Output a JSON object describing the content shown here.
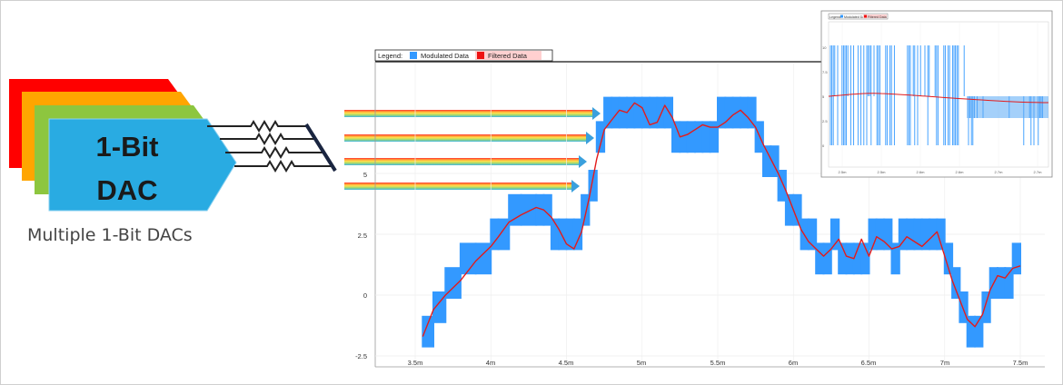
{
  "dac": {
    "title_line1": "1-Bit",
    "title_line2": "DAC",
    "caption": "Multiple 1-Bit DACs",
    "card_colors": [
      "#ff0000",
      "#ffa500",
      "#8dc63f",
      "#29abe2"
    ]
  },
  "chart_data": {
    "type": "line",
    "legend_label": "Legend:",
    "series": [
      {
        "name": "Modulated Data",
        "color": "#3399ff"
      },
      {
        "name": "Filtered Data",
        "color": "#ee1111"
      }
    ],
    "x_ticks": [
      "3.5m",
      "4m",
      "4.5m",
      "5m",
      "5.5m",
      "6m",
      "6.5m",
      "7m",
      "7.5m"
    ],
    "y_ticks": [
      "-2.5",
      "0",
      "2.5",
      "5"
    ],
    "xlim": [
      3.32,
      7.68
    ],
    "ylim": [
      -2.5,
      8.25
    ],
    "filtered_x": [
      3.55,
      3.62,
      3.7,
      3.8,
      3.9,
      4.0,
      4.05,
      4.12,
      4.2,
      4.3,
      4.35,
      4.4,
      4.45,
      4.5,
      4.55,
      4.6,
      4.65,
      4.7,
      4.75,
      4.8,
      4.85,
      4.9,
      4.95,
      5.0,
      5.05,
      5.1,
      5.15,
      5.2,
      5.25,
      5.3,
      5.35,
      5.4,
      5.45,
      5.5,
      5.55,
      5.6,
      5.65,
      5.7,
      5.75,
      5.8,
      5.85,
      5.9,
      5.95,
      6.0,
      6.05,
      6.1,
      6.15,
      6.2,
      6.25,
      6.3,
      6.35,
      6.4,
      6.45,
      6.5,
      6.55,
      6.6,
      6.65,
      6.7,
      6.75,
      6.8,
      6.85,
      6.9,
      6.95,
      7.0,
      7.05,
      7.1,
      7.15,
      7.2,
      7.25,
      7.3,
      7.35,
      7.4,
      7.45,
      7.5
    ],
    "filtered_y": [
      -1.7,
      -0.6,
      0.0,
      0.6,
      1.4,
      2.0,
      2.4,
      3.0,
      3.3,
      3.6,
      3.5,
      3.2,
      2.7,
      2.1,
      1.9,
      2.6,
      4.0,
      5.6,
      6.8,
      7.2,
      7.6,
      7.5,
      7.9,
      7.7,
      7.0,
      7.1,
      7.8,
      7.3,
      6.5,
      6.6,
      6.8,
      7.0,
      6.9,
      6.9,
      7.1,
      7.4,
      7.6,
      7.3,
      6.9,
      6.2,
      5.6,
      5.0,
      4.3,
      3.5,
      2.7,
      2.2,
      1.9,
      1.6,
      1.9,
      2.3,
      1.6,
      1.5,
      2.3,
      1.6,
      2.4,
      2.2,
      1.9,
      2.0,
      2.4,
      2.2,
      2.0,
      2.3,
      2.6,
      1.6,
      0.6,
      -0.2,
      -1.0,
      -1.3,
      -0.8,
      0.2,
      0.8,
      0.7,
      1.1,
      1.2
    ]
  },
  "inset": {
    "legend_label": "Legend:",
    "series": [
      "Modulated Data",
      "Filtered Data"
    ],
    "y_ticks": [
      "10",
      "7.5",
      "5",
      "2.5",
      "0"
    ],
    "x_ticks": [
      "2.5m",
      "2.5m",
      "2.6m",
      "2.6m",
      "2.7m",
      "2.7m",
      "2.8m"
    ]
  }
}
